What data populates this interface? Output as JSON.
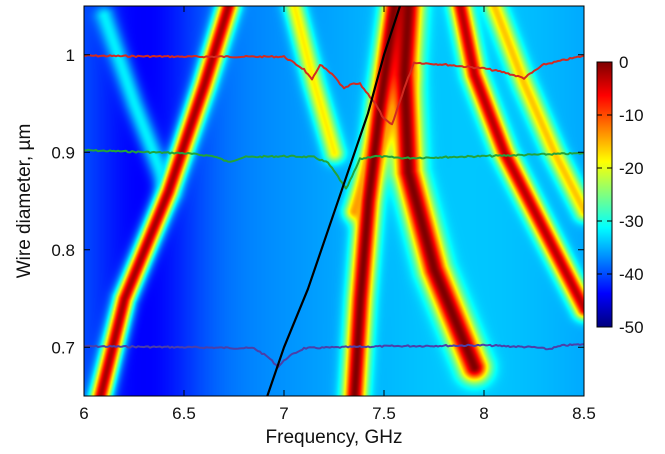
{
  "chart_data": {
    "type": "heatmap",
    "title": "",
    "xlabel": "Frequency, GHz",
    "ylabel": "Wire diameter, µm",
    "xlim": [
      6,
      8.5
    ],
    "ylim": [
      1.05,
      0.65
    ],
    "y_inverted": true,
    "x_ticks": [
      6,
      6.5,
      7,
      7.5,
      8,
      8.5
    ],
    "x_tick_labels": [
      "6",
      "6.5",
      "7",
      "7.5",
      "8",
      "8.5"
    ],
    "y_ticks": [
      0.7,
      0.8,
      0.9,
      1.0
    ],
    "y_tick_labels": [
      "0.7",
      "0.8",
      "0.9",
      "1"
    ],
    "grid": false,
    "colorbar": {
      "range": [
        -50,
        0
      ],
      "ticks": [
        0,
        -10,
        -20,
        -30,
        -40,
        -50
      ],
      "tick_labels": [
        "0",
        "-10",
        "-20",
        "-30",
        "-40",
        "-50"
      ],
      "colormap": "jet",
      "placement": "right"
    },
    "resonance_bands": [
      {
        "points": [
          [
            6.08,
            0.65
          ],
          [
            6.2,
            0.75
          ],
          [
            6.42,
            0.86
          ],
          [
            6.6,
            0.97
          ],
          [
            6.72,
            1.05
          ]
        ],
        "peak": -2
      },
      {
        "points": [
          [
            7.35,
            0.65
          ],
          [
            7.38,
            0.75
          ],
          [
            7.42,
            0.85
          ],
          [
            7.48,
            0.95
          ],
          [
            7.55,
            1.05
          ]
        ],
        "peak": 0
      },
      {
        "points": [
          [
            7.95,
            0.68
          ],
          [
            7.75,
            0.78
          ],
          [
            7.62,
            0.88
          ],
          [
            7.6,
            0.98
          ],
          [
            7.62,
            1.05
          ]
        ],
        "peak": 0
      },
      {
        "points": [
          [
            8.5,
            0.74
          ],
          [
            8.3,
            0.82
          ],
          [
            8.1,
            0.9
          ],
          [
            7.95,
            0.98
          ],
          [
            7.88,
            1.05
          ]
        ],
        "peak": -3
      },
      {
        "points": [
          [
            7.62,
            0.98
          ],
          [
            7.45,
            0.9
          ],
          [
            7.35,
            0.84
          ]
        ],
        "peak": -14
      },
      {
        "points": [
          [
            8.05,
            1.05
          ],
          [
            8.2,
            0.97
          ],
          [
            8.35,
            0.9
          ],
          [
            8.5,
            0.84
          ]
        ],
        "peak": -16
      },
      {
        "points": [
          [
            7.05,
            1.05
          ],
          [
            7.15,
            0.97
          ],
          [
            7.25,
            0.9
          ]
        ],
        "peak": -18
      },
      {
        "points": [
          [
            6.1,
            1.04
          ],
          [
            6.25,
            0.95
          ],
          [
            6.42,
            0.86
          ]
        ],
        "peak": -32
      }
    ],
    "dispersion_curve": {
      "color": "#000000",
      "points": [
        [
          6.9,
          0.64
        ],
        [
          7.0,
          0.7
        ],
        [
          7.12,
          0.76
        ],
        [
          7.22,
          0.82
        ],
        [
          7.32,
          0.88
        ],
        [
          7.42,
          0.94
        ],
        [
          7.5,
          1.0
        ],
        [
          7.58,
          1.05
        ]
      ]
    },
    "series": [
      {
        "color": "#4b3fa8",
        "baseline": 0.701,
        "points": [
          [
            6.0,
            0.701
          ],
          [
            6.5,
            0.7
          ],
          [
            6.85,
            0.699
          ],
          [
            6.92,
            0.69
          ],
          [
            6.97,
            0.68
          ],
          [
            7.02,
            0.69
          ],
          [
            7.1,
            0.699
          ],
          [
            7.5,
            0.701
          ],
          [
            8.0,
            0.702
          ],
          [
            8.25,
            0.7
          ],
          [
            8.32,
            0.698
          ],
          [
            8.4,
            0.702
          ],
          [
            8.5,
            0.703
          ]
        ]
      },
      {
        "color": "#22a33a",
        "baseline": 0.9,
        "points": [
          [
            6.0,
            0.902
          ],
          [
            6.5,
            0.899
          ],
          [
            6.65,
            0.896
          ],
          [
            6.72,
            0.89
          ],
          [
            6.8,
            0.895
          ],
          [
            7.0,
            0.896
          ],
          [
            7.15,
            0.895
          ],
          [
            7.22,
            0.889
          ],
          [
            7.27,
            0.875
          ],
          [
            7.31,
            0.862
          ],
          [
            7.34,
            0.875
          ],
          [
            7.38,
            0.893
          ],
          [
            7.45,
            0.896
          ],
          [
            7.6,
            0.894
          ],
          [
            8.0,
            0.896
          ],
          [
            8.5,
            0.899
          ]
        ]
      },
      {
        "color": "#d22a20",
        "baseline": 1.0,
        "points": [
          [
            6.0,
            0.999
          ],
          [
            6.5,
            0.998
          ],
          [
            7.0,
            0.998
          ],
          [
            7.1,
            0.985
          ],
          [
            7.14,
            0.974
          ],
          [
            7.18,
            0.99
          ],
          [
            7.25,
            0.978
          ],
          [
            7.3,
            0.965
          ],
          [
            7.34,
            0.97
          ],
          [
            7.38,
            0.97
          ],
          [
            7.45,
            0.952
          ],
          [
            7.5,
            0.934
          ],
          [
            7.54,
            0.928
          ],
          [
            7.6,
            0.965
          ],
          [
            7.65,
            0.992
          ],
          [
            7.8,
            0.99
          ],
          [
            8.0,
            0.986
          ],
          [
            8.1,
            0.982
          ],
          [
            8.2,
            0.976
          ],
          [
            8.3,
            0.99
          ],
          [
            8.5,
            0.999
          ]
        ]
      }
    ]
  }
}
